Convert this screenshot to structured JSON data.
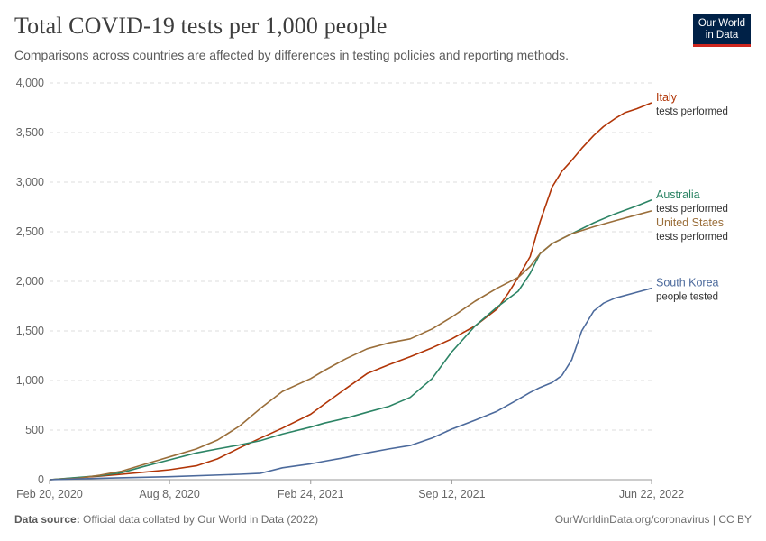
{
  "header": {
    "title": "Total COVID-19 tests per 1,000 people",
    "subtitle": "Comparisons across countries are affected by differences in testing policies and reporting methods.",
    "logo_line1": "Our World",
    "logo_line2": "in Data"
  },
  "footer": {
    "source_label": "Data source:",
    "source_text": "Official data collated by Our World in Data (2022)",
    "right_text": "OurWorldinData.org/coronavirus | CC BY"
  },
  "colors": {
    "italy": "#b13507",
    "australia": "#2c8465",
    "united_states": "#9a6e3a",
    "south_korea": "#4c6a9c"
  },
  "chart_data": {
    "type": "line",
    "title": "Total COVID-19 tests per 1,000 people",
    "xlabel": "",
    "ylabel": "",
    "xlim": [
      "2020-02-20",
      "2022-06-22"
    ],
    "ylim": [
      0,
      4000
    ],
    "y_ticks": [
      0,
      500,
      1000,
      1500,
      2000,
      2500,
      3000,
      3500,
      4000
    ],
    "y_tick_labels": [
      "0",
      "500",
      "1,000",
      "1,500",
      "2,000",
      "2,500",
      "3,000",
      "3,500",
      "4,000"
    ],
    "x_ticks": [
      "2020-02-20",
      "2020-08-08",
      "2021-02-24",
      "2021-09-12",
      "2022-06-22"
    ],
    "x_tick_labels": [
      "Feb 20, 2020",
      "Aug 8, 2020",
      "Feb 24, 2021",
      "Sep 12, 2021",
      "Jun 22, 2022"
    ],
    "grid": "horizontal dashed",
    "legend": "labels at line ends (right)",
    "series": [
      {
        "name": "Italy",
        "sublabel": "tests performed",
        "color": "#b13507",
        "x": [
          "2020-02-20",
          "2020-05-01",
          "2020-06-01",
          "2020-07-01",
          "2020-08-08",
          "2020-09-15",
          "2020-10-15",
          "2020-11-15",
          "2020-12-15",
          "2021-01-15",
          "2021-02-24",
          "2021-03-15",
          "2021-04-15",
          "2021-05-15",
          "2021-06-15",
          "2021-07-15",
          "2021-08-15",
          "2021-09-12",
          "2021-10-15",
          "2021-11-15",
          "2021-12-01",
          "2021-12-15",
          "2022-01-01",
          "2022-01-15",
          "2022-02-01",
          "2022-02-15",
          "2022-03-01",
          "2022-03-15",
          "2022-04-01",
          "2022-04-15",
          "2022-05-01",
          "2022-05-15",
          "2022-06-01",
          "2022-06-22"
        ],
        "y": [
          0,
          35,
          55,
          75,
          100,
          140,
          210,
          320,
          420,
          520,
          660,
          760,
          920,
          1070,
          1160,
          1240,
          1330,
          1420,
          1550,
          1720,
          1880,
          2040,
          2250,
          2600,
          2950,
          3110,
          3220,
          3340,
          3470,
          3560,
          3640,
          3700,
          3740,
          3800
        ]
      },
      {
        "name": "Australia",
        "sublabel": "tests performed",
        "color": "#2c8465",
        "x": [
          "2020-02-20",
          "2020-05-01",
          "2020-06-01",
          "2020-07-01",
          "2020-08-08",
          "2020-09-15",
          "2020-10-15",
          "2020-11-15",
          "2020-12-15",
          "2021-01-15",
          "2021-02-24",
          "2021-03-15",
          "2021-04-15",
          "2021-05-15",
          "2021-06-15",
          "2021-07-15",
          "2021-08-15",
          "2021-09-12",
          "2021-10-15",
          "2021-11-15",
          "2021-12-15",
          "2022-01-01",
          "2022-01-15",
          "2022-02-01",
          "2022-03-01",
          "2022-04-01",
          "2022-05-01",
          "2022-06-01",
          "2022-06-22"
        ],
        "y": [
          0,
          40,
          70,
          130,
          200,
          270,
          310,
          350,
          395,
          460,
          530,
          570,
          620,
          680,
          740,
          830,
          1020,
          1290,
          1550,
          1740,
          1900,
          2080,
          2280,
          2380,
          2480,
          2590,
          2680,
          2760,
          2820
        ]
      },
      {
        "name": "United States",
        "sublabel": "tests performed",
        "color": "#9a6e3a",
        "x": [
          "2020-02-20",
          "2020-04-01",
          "2020-05-01",
          "2020-06-01",
          "2020-07-01",
          "2020-08-08",
          "2020-09-15",
          "2020-10-15",
          "2020-11-15",
          "2020-12-15",
          "2021-01-15",
          "2021-02-24",
          "2021-03-15",
          "2021-04-15",
          "2021-05-15",
          "2021-06-15",
          "2021-07-15",
          "2021-08-15",
          "2021-09-12",
          "2021-10-15",
          "2021-11-15",
          "2021-12-15",
          "2022-01-01",
          "2022-01-15",
          "2022-02-01",
          "2022-03-01",
          "2022-04-01",
          "2022-05-01",
          "2022-06-01",
          "2022-06-22"
        ],
        "y": [
          0,
          15,
          45,
          85,
          150,
          230,
          310,
          400,
          540,
          720,
          890,
          1020,
          1100,
          1220,
          1320,
          1380,
          1420,
          1520,
          1640,
          1800,
          1930,
          2040,
          2150,
          2280,
          2380,
          2480,
          2550,
          2610,
          2670,
          2710
        ]
      },
      {
        "name": "South Korea",
        "sublabel": "people tested",
        "color": "#4c6a9c",
        "x": [
          "2020-02-20",
          "2020-05-01",
          "2020-08-08",
          "2020-11-15",
          "2020-12-15",
          "2021-01-15",
          "2021-02-24",
          "2021-03-15",
          "2021-04-15",
          "2021-05-15",
          "2021-06-15",
          "2021-07-15",
          "2021-08-15",
          "2021-09-12",
          "2021-10-15",
          "2021-11-15",
          "2021-12-15",
          "2022-01-01",
          "2022-01-15",
          "2022-02-01",
          "2022-02-15",
          "2022-03-01",
          "2022-03-15",
          "2022-04-01",
          "2022-04-15",
          "2022-05-01",
          "2022-06-01",
          "2022-06-22"
        ],
        "y": [
          0,
          15,
          30,
          55,
          65,
          120,
          160,
          185,
          225,
          270,
          310,
          345,
          420,
          510,
          600,
          690,
          810,
          880,
          930,
          980,
          1050,
          1210,
          1500,
          1700,
          1780,
          1830,
          1890,
          1930
        ]
      }
    ]
  }
}
